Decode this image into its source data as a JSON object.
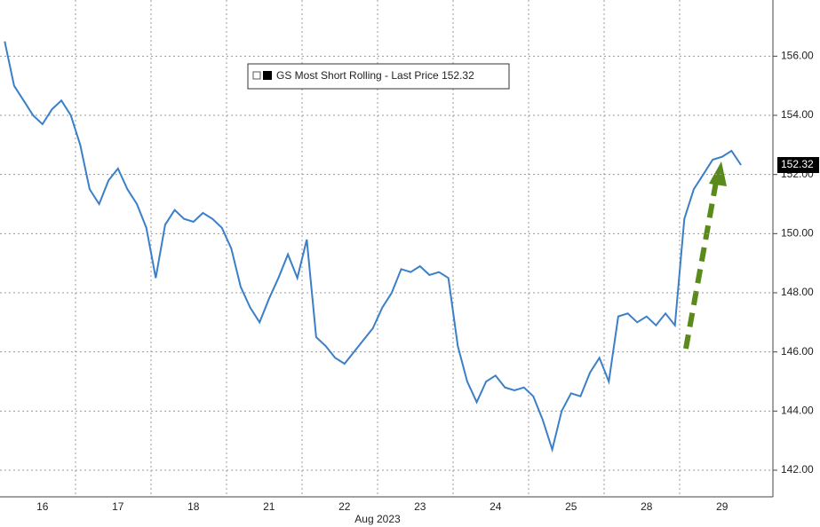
{
  "chart_data": {
    "type": "line",
    "x_label": "Aug 2023",
    "categories": [
      null,
      null,
      null,
      null,
      "16",
      null,
      null,
      null,
      null,
      null,
      null,
      null,
      "17",
      null,
      null,
      null,
      null,
      null,
      null,
      null,
      "18",
      null,
      null,
      null,
      null,
      null,
      null,
      null,
      "21",
      null,
      null,
      null,
      null,
      null,
      null,
      null,
      "22",
      null,
      null,
      null,
      null,
      null,
      null,
      null,
      "23",
      null,
      null,
      null,
      null,
      null,
      null,
      null,
      "24",
      null,
      null,
      null,
      null,
      null,
      null,
      null,
      "25",
      null,
      null,
      null,
      null,
      null,
      null,
      null,
      "28",
      null,
      null,
      null,
      null,
      null,
      null,
      null,
      "29",
      null,
      null
    ],
    "series": [
      {
        "name": "GS Most Short Rolling - Last Price 152.32",
        "color": "#3a7fc8",
        "values": [
          156.5,
          155.0,
          154.5,
          154.0,
          153.7,
          154.2,
          154.5,
          154.0,
          153.0,
          151.5,
          151.0,
          151.8,
          152.2,
          151.5,
          151.0,
          150.2,
          148.5,
          150.3,
          150.8,
          150.5,
          150.4,
          150.7,
          150.5,
          150.2,
          149.5,
          148.2,
          147.5,
          147.0,
          147.8,
          148.5,
          149.3,
          148.5,
          149.8,
          146.5,
          146.2,
          145.8,
          145.6,
          146.0,
          146.4,
          146.8,
          147.5,
          148.0,
          148.8,
          148.7,
          148.9,
          148.6,
          148.7,
          148.5,
          146.2,
          145.0,
          144.3,
          145.0,
          145.2,
          144.8,
          144.7,
          144.8,
          144.5,
          143.7,
          142.7,
          144.0,
          144.6,
          144.5,
          145.3,
          145.8,
          145.0,
          147.2,
          147.3,
          147.0,
          147.2,
          146.9,
          147.3,
          146.9,
          150.5,
          151.5,
          152.0,
          152.5,
          152.6,
          152.8,
          152.32
        ]
      }
    ],
    "last_value": 152.32,
    "last_value_label": "152.32",
    "ylim": [
      141.1,
      157.9
    ],
    "yticks": [
      {
        "value": 142,
        "label": "142.00"
      },
      {
        "value": 144,
        "label": "144.00"
      },
      {
        "value": 146,
        "label": "146.00"
      },
      {
        "value": 148,
        "label": "148.00"
      },
      {
        "value": 150,
        "label": "150.00"
      },
      {
        "value": 152,
        "label": "152.00"
      },
      {
        "value": 154,
        "label": "154.00"
      },
      {
        "value": 156,
        "label": "156.00"
      }
    ],
    "grid": true
  }
}
